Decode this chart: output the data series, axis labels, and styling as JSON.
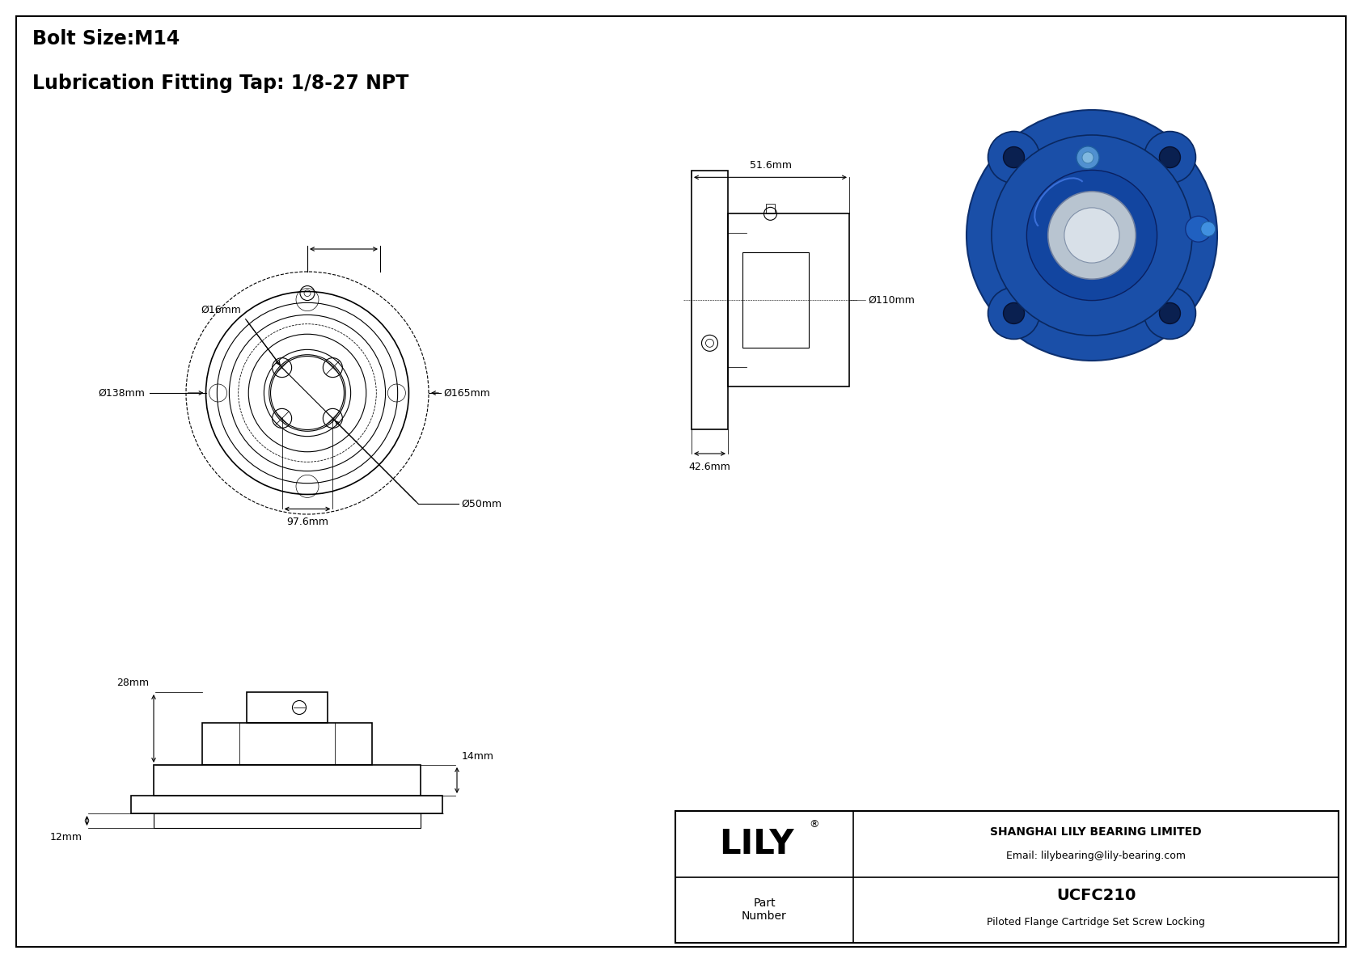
{
  "title_line1": "Bolt Size:M14",
  "title_line2": "Lubrication Fitting Tap: 1/8-27 NPT",
  "bg_color": "#ffffff",
  "line_color": "#000000",
  "company": "SHANGHAI LILY BEARING LIMITED",
  "email": "Email: lilybearing@lily-bearing.com",
  "part_label": "Part\nNumber",
  "part_number": "UCFC210",
  "part_desc": "Piloted Flange Cartridge Set Screw Locking",
  "lily_text": "LILY",
  "dims": {
    "bolt_hole_dia": "Ø16mm",
    "flange_dia": "Ø138mm",
    "outer_dia": "Ø165mm",
    "bore_dia": "Ø50mm",
    "bolt_circle": "97.6mm",
    "side_width": "51.6mm",
    "side_height": "42.6mm",
    "side_bore": "Ø110mm",
    "top_height": "28mm",
    "mid_height": "14mm",
    "base_height": "12mm"
  }
}
